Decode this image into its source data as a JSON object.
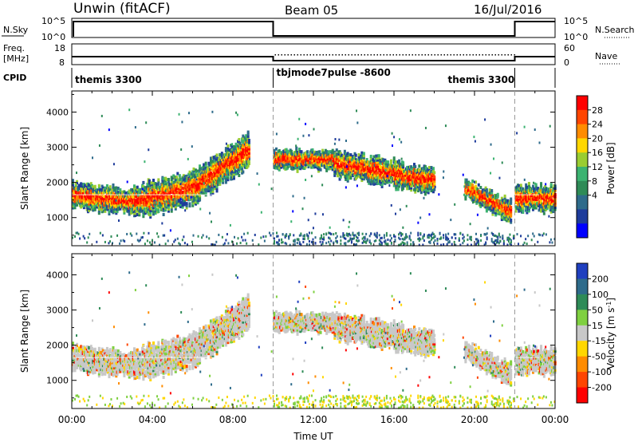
{
  "header": {
    "station": "Unwin (fitACF)",
    "beam": "Beam 05",
    "date": "16/Jul/2016"
  },
  "status_panels": {
    "nsky": {
      "label": "N.Sky",
      "ticks": [
        "10^5",
        "10^0"
      ]
    },
    "nsearch": {
      "label": "N.Search",
      "ticks": [
        "10^5",
        "10^0"
      ]
    },
    "freq": {
      "label_line1": "Freq.",
      "label_line2": "[MHz]",
      "ticks": [
        "18",
        "8"
      ]
    },
    "nave": {
      "label": "Nave",
      "ticks": [
        "60",
        "0"
      ]
    },
    "cpid": {
      "label": "CPID",
      "segments": [
        {
          "start_hour": 0,
          "end_hour": 10,
          "name": "themis 3300"
        },
        {
          "start_hour": 10,
          "end_hour": 22,
          "name": "tbjmode7pulse -8600"
        },
        {
          "start_hour": 22,
          "end_hour": 24,
          "name": "themis 3300"
        }
      ]
    }
  },
  "chart_data": [
    {
      "type": "heatmap",
      "name": "power",
      "ylabel": "Slant Range [km]",
      "ylim": [
        200,
        4600
      ],
      "yticks": [
        1000,
        2000,
        3000,
        4000
      ],
      "xlim": [
        0,
        24
      ],
      "colorbar": {
        "label": "Power [dB]",
        "ticks": [
          "28",
          "24",
          "20",
          "16",
          "12",
          "8",
          "4"
        ],
        "colors": [
          "#ff0000",
          "#ff4500",
          "#ff8c00",
          "#ffd700",
          "#9acd32",
          "#3cb371",
          "#2e8b57",
          "#2e6b8b",
          "#1e3c9b",
          "#0000ff"
        ]
      },
      "echo_bands": [
        {
          "x": [
            0.0,
            3.0
          ],
          "center_start": 1700,
          "center_end": 1500,
          "width": 350
        },
        {
          "x": [
            3.0,
            6.0
          ],
          "center_start": 1500,
          "center_end": 1900,
          "width": 450
        },
        {
          "x": [
            6.0,
            8.8
          ],
          "center_start": 1900,
          "center_end": 3000,
          "width": 450
        },
        {
          "x": [
            10.0,
            13.0
          ],
          "center_start": 2700,
          "center_end": 2700,
          "width": 250
        },
        {
          "x": [
            13.0,
            18.0
          ],
          "center_start": 2600,
          "center_end": 2100,
          "width": 350
        },
        {
          "x": [
            19.5,
            21.8
          ],
          "center_start": 1900,
          "center_end": 1200,
          "width": 300
        },
        {
          "x": [
            22.0,
            24.0
          ],
          "center_start": 1600,
          "center_end": 1600,
          "width": 350
        }
      ]
    },
    {
      "type": "heatmap",
      "name": "velocity",
      "ylabel": "Slant Range [km]",
      "ylim": [
        200,
        4600
      ],
      "yticks": [
        1000,
        2000,
        3000,
        4000
      ],
      "xlim": [
        0,
        24
      ],
      "xticks": [
        "00:00",
        "04:00",
        "08:00",
        "12:00",
        "16:00",
        "20:00",
        "00:00"
      ],
      "xlabel": "Time UT",
      "colorbar": {
        "label": "Velocity [m s",
        "label_sup": "-1",
        "label_end": "]",
        "ticks": [
          "200",
          "100",
          "50",
          "15",
          "-15",
          "-50",
          "-100",
          "-200"
        ],
        "colors": [
          "#1f3fbf",
          "#2e6b8b",
          "#2e8b57",
          "#7fd040",
          "#c8c8c8",
          "#ffd700",
          "#ff8c00",
          "#ff4500",
          "#ff0000"
        ]
      }
    }
  ],
  "scan_change_hours": [
    10,
    22
  ]
}
